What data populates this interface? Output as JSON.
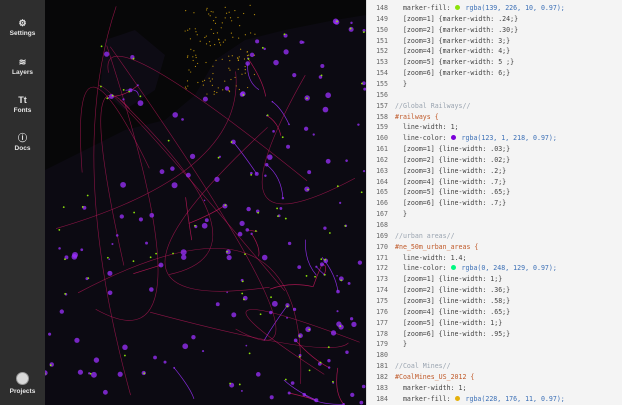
{
  "sidebar": {
    "items": [
      {
        "label": "Settings",
        "icon": "gear-icon"
      },
      {
        "label": "Layers",
        "icon": "layers-icon"
      },
      {
        "label": "Fonts",
        "icon": "font-icon"
      },
      {
        "label": "Docs",
        "icon": "info-icon"
      }
    ],
    "projects": {
      "label": "Projects",
      "icon": "projects-icon"
    }
  },
  "map": {
    "description_colors": {
      "background": "#070708",
      "rail": "#c2185b",
      "urban": "#9b30ff",
      "marker": "#8be20a"
    }
  },
  "editor": {
    "lines": [
      {
        "n": "148",
        "text": "  marker-fill: ● rgba(139, 226, 10, 0.97);",
        "type": "prop",
        "swatch": "#8be20a"
      },
      {
        "n": "149",
        "text": "  [zoom=1] {marker-width: .24;}",
        "type": "prop"
      },
      {
        "n": "150",
        "text": "  [zoom=2] {marker-width: .30;}",
        "type": "prop"
      },
      {
        "n": "151",
        "text": "  [zoom=3] {marker-width: 3;}",
        "type": "prop"
      },
      {
        "n": "152",
        "text": "  [zoom=4] {marker-width: 4;}",
        "type": "prop"
      },
      {
        "n": "153",
        "text": "  [zoom=5] {marker-width: 5 ;}",
        "type": "prop"
      },
      {
        "n": "154",
        "text": "  [zoom=6] {marker-width: 6;}",
        "type": "prop"
      },
      {
        "n": "155",
        "text": "  }",
        "type": "prop"
      },
      {
        "n": "156",
        "text": "",
        "type": "prop"
      },
      {
        "n": "157",
        "text": "//Global Railways//",
        "type": "comment"
      },
      {
        "n": "158",
        "text": "#railways {",
        "type": "sel"
      },
      {
        "n": "159",
        "text": "  line-width: 1;",
        "type": "prop"
      },
      {
        "n": "160",
        "text": "  line-color: ● rgba(123, 1, 218, 0.97);",
        "type": "prop",
        "swatch": "#7b01da"
      },
      {
        "n": "161",
        "text": "  [zoom=1] {line-width: .03;}",
        "type": "prop"
      },
      {
        "n": "162",
        "text": "  [zoom=2] {line-width: .02;}",
        "type": "prop"
      },
      {
        "n": "163",
        "text": "  [zoom=3] {line-width: .2;}",
        "type": "prop"
      },
      {
        "n": "164",
        "text": "  [zoom=4] {line-width: .7;}",
        "type": "prop"
      },
      {
        "n": "165",
        "text": "  [zoom=5] {line-width: .65;}",
        "type": "prop"
      },
      {
        "n": "166",
        "text": "  [zoom=6] {line-width: .7;}",
        "type": "prop"
      },
      {
        "n": "167",
        "text": "  }",
        "type": "prop"
      },
      {
        "n": "168",
        "text": "",
        "type": "prop"
      },
      {
        "n": "169",
        "text": "//urban areas//",
        "type": "comment"
      },
      {
        "n": "170",
        "text": "#ne_50m_urban_areas {",
        "type": "sel"
      },
      {
        "n": "171",
        "text": "  line-width: 1.4;",
        "type": "prop"
      },
      {
        "n": "172",
        "text": "  line-color: ● rgba(0, 248, 129, 0.97);",
        "type": "prop",
        "swatch": "#00f881"
      },
      {
        "n": "173",
        "text": "  [zoom=1] {line-width: 1;}",
        "type": "prop"
      },
      {
        "n": "174",
        "text": "  [zoom=2] {line-width: .36;}",
        "type": "prop"
      },
      {
        "n": "175",
        "text": "  [zoom=3] {line-width: .58;}",
        "type": "prop"
      },
      {
        "n": "176",
        "text": "  [zoom=4] {line-width: .65;}",
        "type": "prop"
      },
      {
        "n": "177",
        "text": "  [zoom=5] {line-width: 1;}",
        "type": "prop"
      },
      {
        "n": "178",
        "text": "  [zoom=6] {line-width: .95;}",
        "type": "prop"
      },
      {
        "n": "179",
        "text": "  }",
        "type": "prop"
      },
      {
        "n": "180",
        "text": "",
        "type": "prop"
      },
      {
        "n": "181",
        "text": "//Coal Mines//",
        "type": "comment"
      },
      {
        "n": "182",
        "text": "#CoalMines_US_2012 {",
        "type": "sel"
      },
      {
        "n": "183",
        "text": "  marker-width: 1;",
        "type": "prop"
      },
      {
        "n": "184",
        "text": "  marker-fill: ● rgba(228, 176, 11, 0.97);",
        "type": "prop",
        "swatch": "#e4b00b"
      }
    ]
  }
}
